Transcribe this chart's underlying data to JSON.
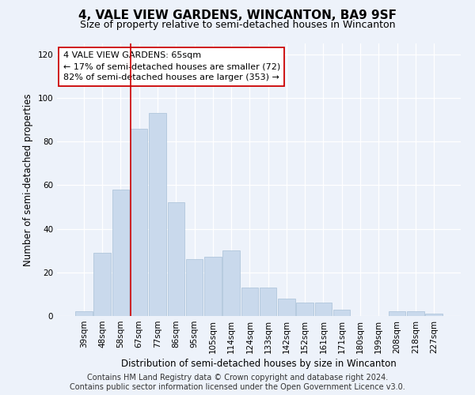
{
  "title": "4, VALE VIEW GARDENS, WINCANTON, BA9 9SF",
  "subtitle": "Size of property relative to semi-detached houses in Wincanton",
  "xlabel": "Distribution of semi-detached houses by size in Wincanton",
  "ylabel": "Number of semi-detached properties",
  "categories": [
    "39sqm",
    "48sqm",
    "58sqm",
    "67sqm",
    "77sqm",
    "86sqm",
    "95sqm",
    "105sqm",
    "114sqm",
    "124sqm",
    "133sqm",
    "142sqm",
    "152sqm",
    "161sqm",
    "171sqm",
    "180sqm",
    "199sqm",
    "208sqm",
    "218sqm",
    "227sqm"
  ],
  "values": [
    2,
    29,
    58,
    86,
    93,
    52,
    26,
    27,
    30,
    13,
    13,
    8,
    6,
    6,
    3,
    0,
    0,
    2,
    2,
    1
  ],
  "bar_color": "#c9d9ec",
  "bar_edgecolor": "#a8c0d8",
  "highlight_line_color": "#cc0000",
  "highlight_bar_index": 3,
  "annotation_text": "4 VALE VIEW GARDENS: 65sqm\n← 17% of semi-detached houses are smaller (72)\n82% of semi-detached houses are larger (353) →",
  "annotation_box_facecolor": "#ffffff",
  "annotation_box_edgecolor": "#cc0000",
  "ylim": [
    0,
    125
  ],
  "yticks": [
    0,
    20,
    40,
    60,
    80,
    100,
    120
  ],
  "footer_line1": "Contains HM Land Registry data © Crown copyright and database right 2024.",
  "footer_line2": "Contains public sector information licensed under the Open Government Licence v3.0.",
  "background_color": "#edf2fa",
  "grid_color": "#ffffff",
  "title_fontsize": 11,
  "subtitle_fontsize": 9,
  "xlabel_fontsize": 8.5,
  "ylabel_fontsize": 8.5,
  "tick_fontsize": 7.5,
  "annotation_fontsize": 8,
  "footer_fontsize": 7
}
